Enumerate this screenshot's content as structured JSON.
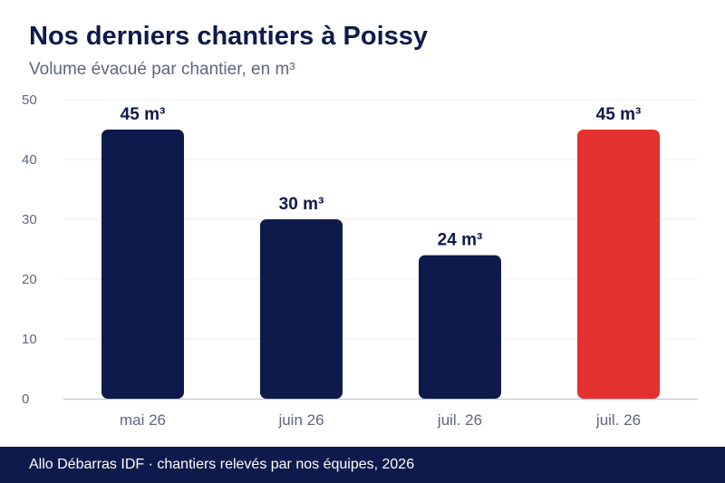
{
  "chart_data": {
    "type": "bar",
    "title": "Nos derniers chantiers à Poissy",
    "subtitle": "Volume évacué par chantier, en m³",
    "categories": [
      "mai 26",
      "juin 26",
      "juil. 26",
      "juil. 26"
    ],
    "values": [
      45,
      30,
      24,
      45
    ],
    "data_labels": [
      "45 m³",
      "30 m³",
      "24 m³",
      "45 m³"
    ],
    "yticks": [
      "0",
      "10",
      "20",
      "30",
      "40",
      "50"
    ],
    "ylim": [
      0,
      50
    ],
    "grid": true,
    "colors": {
      "bar": "#0e1a4b",
      "highlight": "#e3312f",
      "grid": "#ececf0",
      "axis": "#c8cbe0",
      "tick_text": "#5f6680",
      "label_text": "#0e1a4b"
    },
    "highlight_index": 3
  },
  "footer": {
    "text": "Allo Débarras IDF · chantiers relevés par nos équipes, 2026"
  }
}
